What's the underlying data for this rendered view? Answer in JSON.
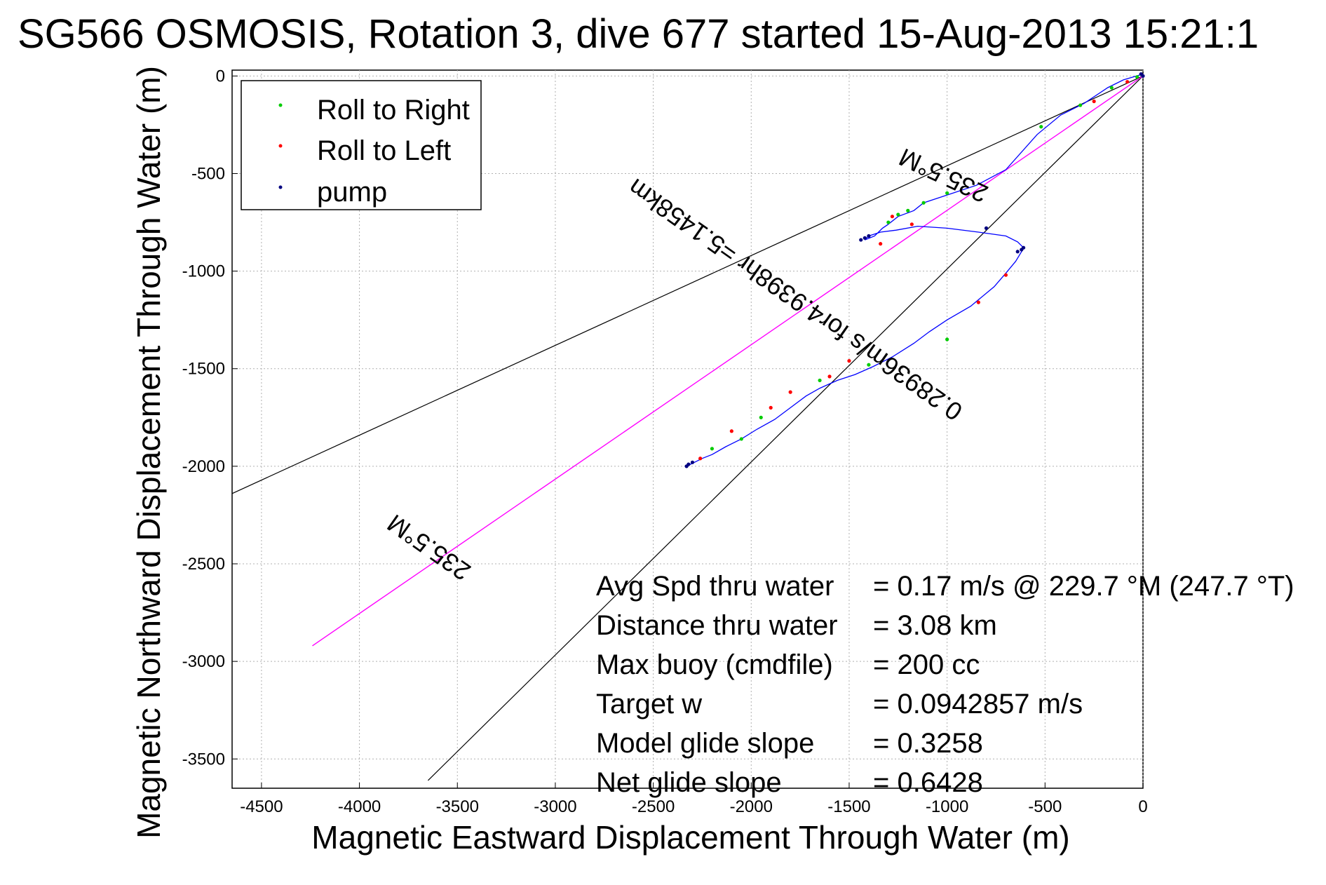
{
  "chart_data": {
    "type": "line",
    "title": "SG566 OSMOSIS, Rotation 3, dive 677 started 15-Aug-2013 15:21:1",
    "xlabel": "Magnetic Eastward Displacement Through Water (m)",
    "ylabel": "Magnetic Northward Displacement Through Water (m)",
    "xlim": [
      -4650,
      0
    ],
    "ylim": [
      -3650,
      30
    ],
    "xticks": [
      -4500,
      -4000,
      -3500,
      -3000,
      -2500,
      -2000,
      -1500,
      -1000,
      -500,
      0
    ],
    "yticks": [
      0,
      -500,
      -1000,
      -1500,
      -2000,
      -2500,
      -3000,
      -3500
    ],
    "xtick_labels": [
      "-4500",
      "-4000",
      "-3500",
      "-3000",
      "-2500",
      "-2000",
      "-1500",
      "-1000",
      "-500",
      "0"
    ],
    "ytick_labels": [
      "0",
      "-500",
      "-1000",
      "-1500",
      "-2000",
      "-2500",
      "-3000",
      "-3500"
    ],
    "grid": true,
    "legend_position": "top-left",
    "legend": [
      {
        "label": "Roll to Right",
        "color": "#00cc00"
      },
      {
        "label": "Roll to Left",
        "color": "#ff0000"
      },
      {
        "label": "pump",
        "color": "#000080"
      }
    ],
    "colors": {
      "track": "#0000ff",
      "heading_line": "#ff00ff",
      "bounds": "#000000"
    },
    "series": [
      {
        "kind": "track",
        "x": [
          0,
          -100,
          -180,
          -300,
          -420,
          -540,
          -700,
          -850,
          -1000,
          -1120,
          -1170,
          -1250,
          -1300,
          -1330,
          -1370,
          -1420,
          -1400,
          -1340,
          -1260,
          -1150,
          -1000,
          -840,
          -700,
          -640,
          -610,
          -620,
          -650,
          -700,
          -760,
          -880,
          -1000,
          -1090,
          -1170,
          -1280,
          -1380,
          -1470,
          -1560,
          -1650,
          -1720,
          -1800,
          -1880,
          -1970,
          -2050,
          -2130,
          -2200,
          -2250,
          -2290,
          -2310,
          -2330
        ],
        "y": [
          10,
          -20,
          -60,
          -140,
          -200,
          -300,
          -480,
          -560,
          -610,
          -650,
          -690,
          -720,
          -760,
          -780,
          -820,
          -840,
          -820,
          -800,
          -790,
          -770,
          -780,
          -800,
          -820,
          -850,
          -880,
          -900,
          -950,
          -1010,
          -1080,
          -1180,
          -1250,
          -1310,
          -1370,
          -1440,
          -1490,
          -1530,
          -1560,
          -1600,
          -1640,
          -1700,
          -1760,
          -1810,
          -1860,
          -1900,
          -1940,
          -1960,
          -1980,
          -1990,
          -2000
        ]
      },
      {
        "kind": "roll_right",
        "x": [
          -30,
          -160,
          -320,
          -520,
          -1000,
          -1250,
          -1300,
          -1200,
          -1650,
          -1950,
          -2200,
          -1000,
          -1400,
          -2050,
          -1120
        ],
        "y": [
          -5,
          -60,
          -150,
          -260,
          -600,
          -710,
          -750,
          -690,
          -1560,
          -1750,
          -1910,
          -1350,
          -1480,
          -1860,
          -650
        ]
      },
      {
        "kind": "roll_left",
        "x": [
          -80,
          -250,
          -700,
          -1340,
          -1280,
          -1180,
          -1500,
          -1800,
          -2100,
          -2260,
          -840,
          -1600,
          -1900
        ],
        "y": [
          -30,
          -130,
          -1020,
          -860,
          -720,
          -760,
          -1460,
          -1620,
          -1820,
          -1960,
          -1160,
          -1540,
          -1700
        ]
      },
      {
        "kind": "pump",
        "x": [
          0,
          -10,
          -610,
          -620,
          -640,
          -1400,
          -1420,
          -1440,
          -2300,
          -2320,
          -2330,
          -800
        ],
        "y": [
          0,
          10,
          -880,
          -890,
          -900,
          -820,
          -830,
          -840,
          -1980,
          -1990,
          -2000,
          -780
        ]
      },
      {
        "kind": "heading_line",
        "name": "235.5°M",
        "x": [
          0,
          -4240
        ],
        "y": [
          0,
          -2920
        ]
      },
      {
        "kind": "bound_upper",
        "x": [
          0,
          -4650
        ],
        "y": [
          0,
          -2140
        ]
      },
      {
        "kind": "bound_lower",
        "x": [
          0,
          -3650
        ],
        "y": [
          0,
          -3610
        ]
      }
    ],
    "annotations": [
      {
        "text": "235.5°M",
        "x": -1000,
        "y": -470,
        "angle": 205
      },
      {
        "text": "0.28936m/s for4.9398hr =5.1458km",
        "x": -1750,
        "y": -1110,
        "angle": 215
      },
      {
        "text": "235.5°M",
        "x": -3620,
        "y": -2380,
        "angle": 215
      }
    ]
  },
  "info": [
    {
      "label": "Avg Spd thru water",
      "value": "=  0.17 m/s @ 229.7 °M (247.7 °T)"
    },
    {
      "label": "Distance thru water",
      "value": "=  3.08 km"
    },
    {
      "label": "Max buoy (cmdfile)",
      "value": "= 200 cc"
    },
    {
      "label": "Target w",
      "value": "= 0.0942857 m/s"
    },
    {
      "label": "Model glide slope",
      "value": "= 0.3258"
    },
    {
      "label": "Net glide slope",
      "value": "= 0.6428"
    }
  ]
}
